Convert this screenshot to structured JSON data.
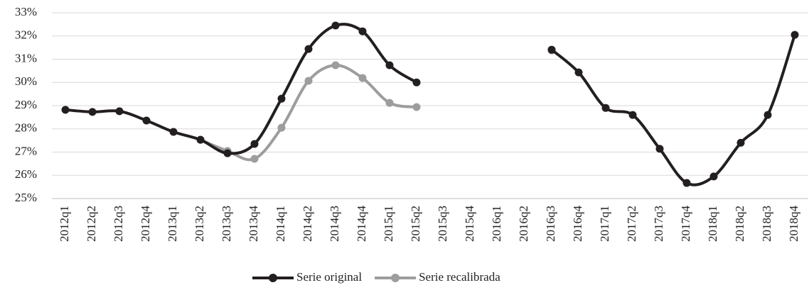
{
  "chart_data": {
    "type": "line",
    "categories": [
      "2012q1",
      "2012q2",
      "2012q3",
      "2012q4",
      "2013q1",
      "2013q2",
      "2013q3",
      "2013q4",
      "2014q1",
      "2014q2",
      "2014q3",
      "2014q4",
      "2015q1",
      "2015q2",
      "2015q3",
      "2015q4",
      "2016q1",
      "2016q2",
      "2016q3",
      "2016q4",
      "2017q1",
      "2017q2",
      "2017q3",
      "2017q4",
      "2018q1",
      "2018q2",
      "2018q3",
      "2018q4"
    ],
    "series": [
      {
        "name": "Serie original",
        "color": "#231f20",
        "values": [
          28.82,
          28.73,
          28.76,
          28.36,
          27.87,
          27.53,
          26.95,
          27.35,
          29.3,
          31.44,
          32.45,
          32.2,
          30.74,
          30.0,
          null,
          null,
          null,
          null,
          31.41,
          30.43,
          28.9,
          28.6,
          27.14,
          25.67,
          25.95,
          27.4,
          28.6,
          32.05
        ]
      },
      {
        "name": "Serie recalibrada",
        "color": "#9d9d9d",
        "values": [
          null,
          null,
          null,
          null,
          null,
          27.53,
          27.05,
          26.71,
          28.05,
          30.07,
          30.74,
          30.19,
          29.12,
          28.94,
          null,
          null,
          null,
          null,
          31.38,
          null,
          null,
          null,
          null,
          null,
          null,
          null,
          null,
          null
        ]
      }
    ],
    "ylim": [
      25,
      33
    ],
    "yticks": [
      {
        "value": 25,
        "label": "25%"
      },
      {
        "value": 26,
        "label": "26%"
      },
      {
        "value": 27,
        "label": "27%"
      },
      {
        "value": 28,
        "label": "28%"
      },
      {
        "value": 29,
        "label": "29%"
      },
      {
        "value": 30,
        "label": "30%"
      },
      {
        "value": 31,
        "label": "31%"
      },
      {
        "value": 32,
        "label": "32%"
      },
      {
        "value": 33,
        "label": "33%"
      }
    ],
    "grid": true,
    "legend": "bottom"
  }
}
